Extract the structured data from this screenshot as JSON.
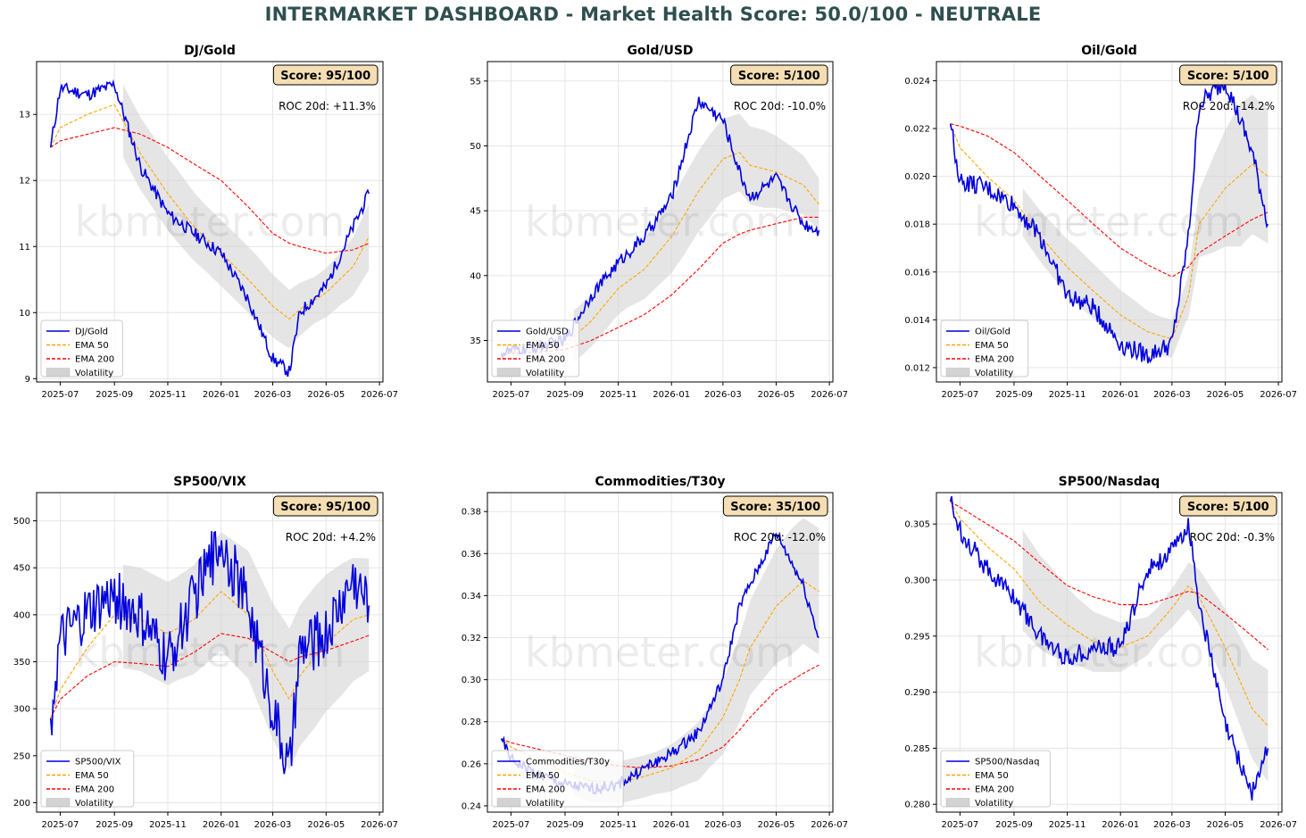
{
  "title": "INTERMARKET DASHBOARD - Market Health Score: 50.0/100 - NEUTRALE",
  "watermark": "kbmeter.com",
  "colors": {
    "price": "#0000dd",
    "ema50": "#ffa500",
    "ema200": "#ff0000",
    "volatility": "#d3d3d3",
    "scorebox": "#f5deb3",
    "title": "#2f4f4f"
  },
  "x_tick_labels": [
    "2025-07",
    "2025-09",
    "2025-11",
    "2026-01",
    "2026-03",
    "2026-05",
    "2026-07"
  ],
  "chart_data": [
    {
      "type": "line",
      "title": "DJ/Gold",
      "score": "Score: 95/100",
      "roc": "ROC 20d: +11.3%",
      "ylim": [
        8.95,
        13.8
      ],
      "yticks": [
        9,
        10,
        11,
        12,
        13
      ],
      "ytick_labels": [
        "9",
        "10",
        "11",
        "12",
        "13"
      ],
      "legend": [
        "DJ/Gold",
        "EMA 50",
        "EMA 200",
        "Volatility"
      ],
      "x": [
        "2025-06-20",
        "2025-07-01",
        "2025-08-01",
        "2025-09-01",
        "2025-10-01",
        "2025-11-01",
        "2025-12-01",
        "2026-01-01",
        "2026-02-01",
        "2026-03-01",
        "2026-03-20",
        "2026-04-01",
        "2026-05-01",
        "2026-06-01",
        "2026-06-19"
      ],
      "price": [
        12.5,
        13.4,
        13.3,
        13.45,
        12.2,
        11.5,
        11.2,
        10.9,
        10.2,
        9.3,
        9.1,
        10.0,
        10.4,
        11.3,
        11.8
      ],
      "ema50": [
        12.5,
        12.8,
        13.0,
        13.15,
        12.4,
        11.8,
        11.3,
        10.9,
        10.5,
        10.1,
        9.9,
        10.05,
        10.3,
        10.7,
        11.15
      ],
      "ema200": [
        12.5,
        12.6,
        12.7,
        12.8,
        12.7,
        12.5,
        12.25,
        12.0,
        11.6,
        11.2,
        11.05,
        11.0,
        10.9,
        10.95,
        11.05
      ],
      "vol_start": "2025-09-10",
      "vol_width": [
        0.55,
        0.55,
        0.55,
        0.5,
        0.5,
        0.5,
        0.45,
        0.35,
        0.4,
        0.5
      ]
    },
    {
      "type": "line",
      "title": "Gold/USD",
      "score": "Score: 5/100",
      "roc": "ROC 20d: -10.0%",
      "ylim": [
        31.8,
        56.5
      ],
      "yticks": [
        35,
        40,
        45,
        50,
        55
      ],
      "ytick_labels": [
        "35",
        "40",
        "45",
        "50",
        "55"
      ],
      "legend": [
        "Gold/USD",
        "EMA 50",
        "EMA 200",
        "Volatility"
      ],
      "x": [
        "2025-06-20",
        "2025-07-01",
        "2025-08-01",
        "2025-09-01",
        "2025-10-01",
        "2025-11-01",
        "2025-12-01",
        "2026-01-01",
        "2026-02-01",
        "2026-03-01",
        "2026-03-20",
        "2026-04-01",
        "2026-05-01",
        "2026-06-01",
        "2026-06-19"
      ],
      "price": [
        34.0,
        34.2,
        34.5,
        35.0,
        38.5,
        41.0,
        43.0,
        46.0,
        53.5,
        52.0,
        48.0,
        46.0,
        47.5,
        44.0,
        43.5
      ],
      "ema50": [
        34.0,
        34.1,
        34.3,
        34.7,
        36.5,
        39.0,
        40.5,
        43.0,
        46.5,
        49.0,
        49.5,
        48.5,
        48.0,
        47.0,
        45.5
      ],
      "ema200": [
        34.0,
        34.0,
        34.1,
        34.3,
        35.0,
        36.0,
        37.0,
        38.5,
        40.5,
        42.5,
        43.2,
        43.5,
        44.0,
        44.5,
        44.5
      ],
      "vol_start": "2025-09-10",
      "vol_width": [
        2.0,
        2.0,
        2.0,
        2.5,
        3.0,
        3.2,
        3.0,
        3.0,
        2.5,
        2.0
      ]
    },
    {
      "type": "line",
      "title": "Oil/Gold",
      "score": "Score: 5/100",
      "roc": "ROC 20d: -14.2%",
      "ylim": [
        0.0114,
        0.0248
      ],
      "yticks": [
        0.012,
        0.014,
        0.016,
        0.018,
        0.02,
        0.022,
        0.024
      ],
      "ytick_labels": [
        "0.012",
        "0.014",
        "0.016",
        "0.018",
        "0.020",
        "0.022",
        "0.024"
      ],
      "legend": [
        "Oil/Gold",
        "EMA 50",
        "EMA 200",
        "Volatility"
      ],
      "x": [
        "2025-06-20",
        "2025-07-01",
        "2025-08-01",
        "2025-09-01",
        "2025-10-01",
        "2025-11-01",
        "2025-12-01",
        "2026-01-01",
        "2026-02-01",
        "2026-03-01",
        "2026-03-20",
        "2026-04-01",
        "2026-05-01",
        "2026-06-01",
        "2026-06-19"
      ],
      "price": [
        0.0222,
        0.0198,
        0.0195,
        0.0188,
        0.0175,
        0.015,
        0.0145,
        0.013,
        0.0125,
        0.013,
        0.0175,
        0.023,
        0.024,
        0.021,
        0.018
      ],
      "ema50": [
        0.0222,
        0.0212,
        0.02,
        0.019,
        0.0175,
        0.0162,
        0.0152,
        0.0142,
        0.0135,
        0.0132,
        0.015,
        0.018,
        0.0195,
        0.0205,
        0.02
      ],
      "ema200": [
        0.0222,
        0.0221,
        0.0217,
        0.021,
        0.02,
        0.019,
        0.018,
        0.017,
        0.0163,
        0.0158,
        0.0162,
        0.0168,
        0.0175,
        0.0182,
        0.0185
      ],
      "vol_start": "2025-09-10",
      "vol_width": [
        0.001,
        0.0011,
        0.0012,
        0.0011,
        0.001,
        0.0008,
        0.0008,
        0.002,
        0.003,
        0.0028
      ]
    },
    {
      "type": "line",
      "title": "SP500/VIX",
      "score": "Score: 95/100",
      "roc": "ROC 20d: +4.2%",
      "ylim": [
        190,
        530
      ],
      "yticks": [
        200,
        250,
        300,
        350,
        400,
        450,
        500
      ],
      "ytick_labels": [
        "200",
        "250",
        "300",
        "350",
        "400",
        "450",
        "500"
      ],
      "legend": [
        "SP500/VIX",
        "EMA 50",
        "EMA 200",
        "Volatility"
      ],
      "x": [
        "2025-06-20",
        "2025-07-01",
        "2025-08-01",
        "2025-09-01",
        "2025-10-01",
        "2025-11-01",
        "2025-12-01",
        "2026-01-01",
        "2026-02-01",
        "2026-03-01",
        "2026-03-20",
        "2026-04-01",
        "2026-05-01",
        "2026-06-01",
        "2026-06-19"
      ],
      "price": [
        290,
        370,
        400,
        420,
        395,
        350,
        420,
        480,
        410,
        300,
        230,
        360,
        380,
        440,
        410
      ],
      "ema50": [
        290,
        320,
        365,
        400,
        395,
        380,
        395,
        425,
        400,
        340,
        310,
        335,
        370,
        395,
        400
      ],
      "ema200": [
        290,
        310,
        335,
        350,
        348,
        345,
        360,
        380,
        375,
        360,
        350,
        355,
        362,
        372,
        378
      ],
      "vol_start": "2025-09-10",
      "vol_width": [
        55,
        55,
        55,
        60,
        65,
        70,
        75,
        75,
        70,
        60
      ]
    },
    {
      "type": "line",
      "title": "Commodities/T30y",
      "score": "Score: 35/100",
      "roc": "ROC 20d: -12.0%",
      "ylim": [
        0.237,
        0.389
      ],
      "yticks": [
        0.24,
        0.26,
        0.28,
        0.3,
        0.32,
        0.34,
        0.36,
        0.38
      ],
      "ytick_labels": [
        "0.24",
        "0.26",
        "0.28",
        "0.30",
        "0.32",
        "0.34",
        "0.36",
        "0.38"
      ],
      "legend": [
        "Commodities/T30y",
        "EMA 50",
        "EMA 200",
        "Volatility"
      ],
      "x": [
        "2025-06-20",
        "2025-07-01",
        "2025-08-01",
        "2025-09-01",
        "2025-10-01",
        "2025-11-01",
        "2025-12-01",
        "2026-01-01",
        "2026-02-01",
        "2026-03-01",
        "2026-03-20",
        "2026-04-01",
        "2026-05-01",
        "2026-06-01",
        "2026-06-19"
      ],
      "price": [
        0.272,
        0.262,
        0.255,
        0.25,
        0.248,
        0.25,
        0.258,
        0.265,
        0.275,
        0.3,
        0.335,
        0.345,
        0.37,
        0.345,
        0.32
      ],
      "ema50": [
        0.272,
        0.268,
        0.262,
        0.256,
        0.252,
        0.251,
        0.254,
        0.258,
        0.266,
        0.282,
        0.3,
        0.315,
        0.335,
        0.347,
        0.342
      ],
      "ema200": [
        0.272,
        0.27,
        0.267,
        0.264,
        0.261,
        0.259,
        0.258,
        0.259,
        0.262,
        0.268,
        0.276,
        0.282,
        0.295,
        0.303,
        0.307
      ],
      "vol_start": "2025-09-10",
      "vol_width": [
        0.01,
        0.01,
        0.01,
        0.01,
        0.012,
        0.015,
        0.02,
        0.025,
        0.03,
        0.03
      ]
    },
    {
      "type": "line",
      "title": "SP500/Nasdaq",
      "score": "Score: 5/100",
      "roc": "ROC 20d: -0.3%",
      "ylim": [
        0.2793,
        0.3078
      ],
      "yticks": [
        0.28,
        0.285,
        0.29,
        0.295,
        0.3,
        0.305
      ],
      "ytick_labels": [
        "0.280",
        "0.285",
        "0.290",
        "0.295",
        "0.300",
        "0.305"
      ],
      "legend": [
        "SP500/Nasdaq",
        "EMA 50",
        "EMA 200",
        "Volatility"
      ],
      "x": [
        "2025-06-20",
        "2025-07-01",
        "2025-08-01",
        "2025-09-01",
        "2025-10-01",
        "2025-11-01",
        "2025-12-01",
        "2026-01-01",
        "2026-02-01",
        "2026-03-01",
        "2026-03-20",
        "2026-04-01",
        "2026-05-01",
        "2026-06-01",
        "2026-06-19"
      ],
      "price": [
        0.307,
        0.3045,
        0.301,
        0.2985,
        0.295,
        0.293,
        0.294,
        0.294,
        0.301,
        0.3025,
        0.305,
        0.298,
        0.287,
        0.281,
        0.285
      ],
      "ema50": [
        0.307,
        0.3055,
        0.303,
        0.301,
        0.298,
        0.296,
        0.2945,
        0.294,
        0.295,
        0.2975,
        0.2995,
        0.2985,
        0.294,
        0.2885,
        0.287
      ],
      "ema200": [
        0.307,
        0.3065,
        0.305,
        0.3035,
        0.3015,
        0.2995,
        0.2985,
        0.2978,
        0.2978,
        0.2985,
        0.299,
        0.2988,
        0.297,
        0.295,
        0.2938
      ],
      "vol_start": "2025-09-10",
      "vol_width": [
        0.0045,
        0.004,
        0.003,
        0.0025,
        0.002,
        0.0015,
        0.002,
        0.003,
        0.004,
        0.005
      ]
    }
  ]
}
